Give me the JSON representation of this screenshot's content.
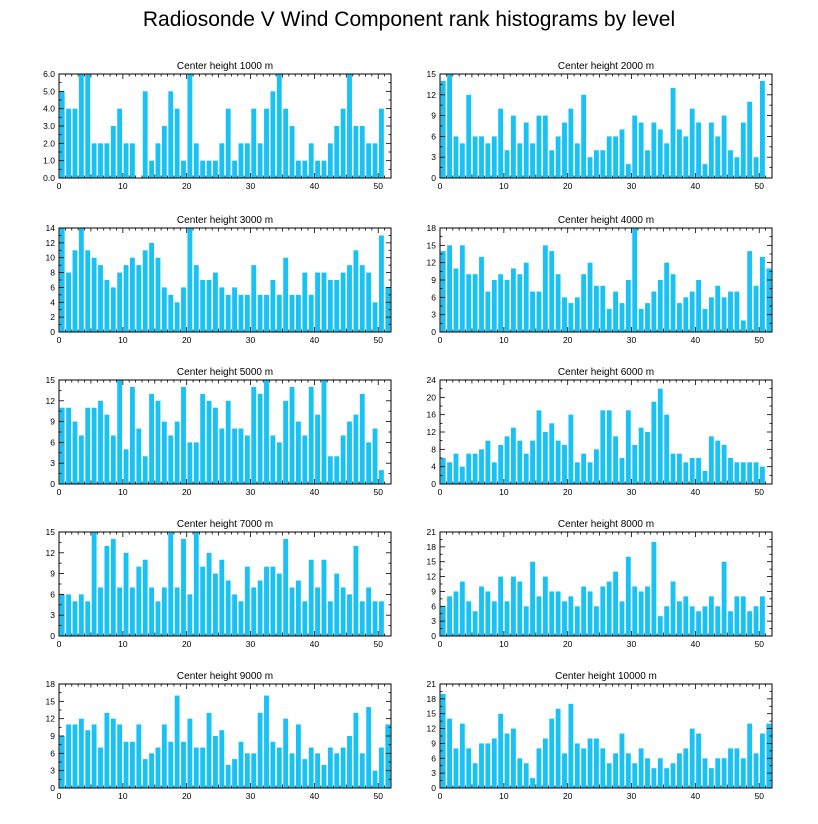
{
  "title": "Radiosonde V Wind Component rank histograms by level",
  "style": {
    "bar_color": "#18c2f4",
    "axis_color": "#000000"
  },
  "chart_data": [
    {
      "type": "bar",
      "title": "Center height 1000 m",
      "xlim": [
        0,
        52
      ],
      "ylim": [
        0,
        6
      ],
      "xticks": [
        0,
        10,
        20,
        30,
        40,
        50
      ],
      "yticks": [
        "0.0",
        "1.0",
        "2.0",
        "3.0",
        "4.0",
        "5.0",
        "6.0"
      ],
      "values": [
        5,
        4,
        4,
        6,
        6,
        2,
        2,
        2,
        3,
        4,
        2,
        2,
        0,
        5,
        1,
        2,
        3,
        5,
        4,
        1,
        6,
        2,
        1,
        1,
        1,
        2,
        4,
        1,
        2,
        2,
        4,
        2,
        4,
        5,
        6,
        4,
        3,
        1,
        1,
        2,
        1,
        1,
        2,
        3,
        4,
        6,
        3,
        3,
        2,
        2,
        4
      ]
    },
    {
      "type": "bar",
      "title": "Center height 2000 m",
      "xlim": [
        0,
        52
      ],
      "ylim": [
        0,
        15
      ],
      "xticks": [
        0,
        10,
        20,
        30,
        40,
        50
      ],
      "yticks": [
        "0",
        "3",
        "6",
        "9",
        "12",
        "15"
      ],
      "values": [
        14,
        15,
        6,
        5,
        12,
        6,
        6,
        5,
        6,
        10,
        4,
        9,
        5,
        8,
        5,
        9,
        9,
        4,
        6,
        8,
        10,
        5,
        12,
        3,
        4,
        4,
        6,
        6,
        7,
        2,
        9,
        8,
        4,
        8,
        7,
        5,
        13,
        7,
        6,
        10,
        8,
        2,
        8,
        6,
        9,
        4,
        3,
        8,
        11,
        3,
        14
      ]
    },
    {
      "type": "bar",
      "title": "Center height 3000 m",
      "xlim": [
        0,
        52
      ],
      "ylim": [
        0,
        14
      ],
      "xticks": [
        0,
        10,
        20,
        30,
        40,
        50
      ],
      "yticks": [
        "0",
        "2",
        "4",
        "6",
        "8",
        "10",
        "12",
        "14"
      ],
      "values": [
        14,
        8,
        11,
        14,
        11,
        10,
        9,
        7,
        6,
        8,
        9,
        10,
        9,
        11,
        12,
        10,
        6,
        5,
        4,
        6,
        14,
        9,
        7,
        7,
        8,
        6,
        5,
        6,
        5,
        5,
        9,
        5,
        5,
        7,
        5,
        10,
        5,
        5,
        8,
        5,
        8,
        8,
        7,
        7,
        8,
        9,
        11,
        9,
        8,
        4,
        13,
        6
      ]
    },
    {
      "type": "bar",
      "title": "Center height 4000 m",
      "xlim": [
        0,
        52
      ],
      "ylim": [
        0,
        18
      ],
      "xticks": [
        0,
        10,
        20,
        30,
        40,
        50
      ],
      "yticks": [
        "0",
        "3",
        "6",
        "9",
        "12",
        "15",
        "18"
      ],
      "values": [
        14,
        15,
        11,
        15,
        10,
        10,
        13,
        7,
        9,
        10,
        9,
        11,
        10,
        12,
        7,
        7,
        15,
        14,
        10,
        6,
        5,
        6,
        10,
        12,
        8,
        8,
        4,
        7,
        5,
        9,
        18,
        4,
        5,
        7,
        9,
        12,
        10,
        5,
        6,
        7,
        9,
        4,
        6,
        8,
        6,
        7,
        7,
        2,
        14,
        8,
        13,
        11
      ]
    },
    {
      "type": "bar",
      "title": "Center height 5000 m",
      "xlim": [
        0,
        52
      ],
      "ylim": [
        0,
        15
      ],
      "xticks": [
        0,
        10,
        20,
        30,
        40,
        50
      ],
      "yticks": [
        "0",
        "3",
        "6",
        "9",
        "12",
        "15"
      ],
      "values": [
        11,
        11,
        9,
        7,
        11,
        11,
        12,
        10,
        7,
        15,
        5,
        14,
        8,
        4,
        13,
        12,
        9,
        7,
        9,
        14,
        6,
        6,
        13,
        12,
        11,
        8,
        12,
        8,
        8,
        7,
        14,
        13,
        15,
        7,
        6,
        12,
        14,
        9,
        7,
        14,
        10,
        15,
        4,
        4,
        7,
        9,
        10,
        13,
        6,
        8,
        2
      ]
    },
    {
      "type": "bar",
      "title": "Center height 6000 m",
      "xlim": [
        0,
        52
      ],
      "ylim": [
        0,
        24
      ],
      "xticks": [
        0,
        10,
        20,
        30,
        40,
        50
      ],
      "yticks": [
        "0",
        "4",
        "8",
        "12",
        "16",
        "20",
        "24"
      ],
      "values": [
        6,
        5,
        7,
        4,
        7,
        7,
        8,
        10,
        5,
        9,
        11,
        13,
        10,
        7,
        10,
        17,
        12,
        14,
        10,
        9,
        16,
        5,
        7,
        5,
        8,
        17,
        17,
        11,
        6,
        17,
        9,
        13,
        12,
        19,
        22,
        16,
        7,
        7,
        5,
        6,
        6,
        3,
        11,
        10,
        9,
        6,
        5,
        5,
        5,
        5,
        4
      ]
    },
    {
      "type": "bar",
      "title": "Center height 7000 m",
      "xlim": [
        0,
        52
      ],
      "ylim": [
        0,
        15
      ],
      "xticks": [
        0,
        10,
        20,
        30,
        40,
        50
      ],
      "yticks": [
        "0",
        "3",
        "6",
        "9",
        "12",
        "15"
      ],
      "values": [
        6,
        6,
        5,
        6,
        5,
        15,
        7,
        13,
        14,
        7,
        12,
        7,
        10,
        11,
        7,
        5,
        7,
        15,
        7,
        14,
        6,
        15,
        10,
        12,
        9,
        11,
        8,
        6,
        5,
        10,
        7,
        8,
        10,
        10,
        9,
        14,
        7,
        8,
        5,
        11,
        7,
        11,
        5,
        9,
        7,
        6,
        13,
        5,
        7,
        5,
        5
      ]
    },
    {
      "type": "bar",
      "title": "Center height 8000 m",
      "xlim": [
        0,
        52
      ],
      "ylim": [
        0,
        21
      ],
      "xticks": [
        0,
        10,
        20,
        30,
        40,
        50
      ],
      "yticks": [
        "0",
        "3",
        "6",
        "9",
        "12",
        "15",
        "18",
        "21"
      ],
      "values": [
        6,
        8,
        9,
        11,
        7,
        5,
        10,
        9,
        7,
        12,
        7,
        12,
        11,
        6,
        15,
        8,
        12,
        9,
        9,
        7,
        8,
        6,
        10,
        9,
        6,
        10,
        11,
        13,
        7,
        16,
        10,
        9,
        10,
        19,
        4,
        6,
        11,
        7,
        8,
        6,
        5,
        6,
        8,
        6,
        15,
        5,
        8,
        8,
        5,
        6,
        8
      ]
    },
    {
      "type": "bar",
      "title": "Center height 9000 m",
      "xlim": [
        0,
        52
      ],
      "ylim": [
        0,
        18
      ],
      "xticks": [
        0,
        10,
        20,
        30,
        40,
        50
      ],
      "yticks": [
        "0",
        "3",
        "6",
        "9",
        "12",
        "15",
        "18"
      ],
      "values": [
        9,
        11,
        11,
        12,
        10,
        11,
        7,
        13,
        12,
        11,
        8,
        8,
        11,
        5,
        6,
        7,
        11,
        8,
        16,
        8,
        12,
        7,
        7,
        13,
        9,
        10,
        4,
        5,
        8,
        6,
        6,
        13,
        16,
        8,
        7,
        12,
        6,
        11,
        5,
        7,
        6,
        4,
        7,
        6,
        7,
        9,
        13,
        6,
        14,
        3,
        7,
        11
      ]
    },
    {
      "type": "bar",
      "title": "Center height 10000 m",
      "xlim": [
        0,
        52
      ],
      "ylim": [
        0,
        21
      ],
      "xticks": [
        0,
        10,
        20,
        30,
        40,
        50
      ],
      "yticks": [
        "0",
        "3",
        "6",
        "9",
        "12",
        "15",
        "18",
        "21"
      ],
      "values": [
        19,
        14,
        8,
        13,
        8,
        5,
        9,
        9,
        10,
        15,
        11,
        12,
        6,
        5,
        2,
        8,
        10,
        14,
        16,
        7,
        17,
        9,
        8,
        10,
        10,
        8,
        5,
        7,
        11,
        7,
        5,
        8,
        6,
        4,
        6,
        4,
        5,
        7,
        8,
        12,
        11,
        6,
        4,
        6,
        6,
        8,
        8,
        6,
        13,
        7,
        11,
        13
      ]
    }
  ]
}
